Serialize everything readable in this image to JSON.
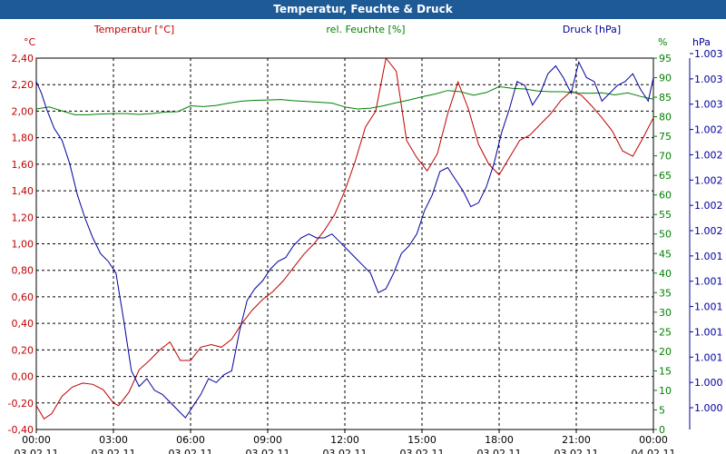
{
  "window": {
    "title": "Temperatur, Feuchte & Druck"
  },
  "chart_data": {
    "type": "line",
    "title": "Temperatur, Feuchte & Druck",
    "x_ticks": [
      "00:00",
      "03:00",
      "06:00",
      "09:00",
      "12:00",
      "15:00",
      "18:00",
      "21:00",
      "00:00"
    ],
    "x_dates": [
      "03.02.11",
      "03.02.11",
      "03.02.11",
      "03.02.11",
      "03.02.11",
      "03.02.11",
      "03.02.11",
      "03.02.11",
      "04.02.11"
    ],
    "x_range_hours": [
      0,
      24
    ],
    "grid": true,
    "colors": {
      "temperature": "#c00000",
      "humidity": "#008000",
      "pressure": "#00009c",
      "grid": "#000000"
    },
    "axes": {
      "temperature": {
        "name": "Temperatur [°C]",
        "unit": "°C",
        "side": "left",
        "ylim": [
          -0.4,
          2.4
        ],
        "tick_labels": [
          "2,40",
          "2,20",
          "2,00",
          "1,80",
          "1,60",
          "1,40",
          "1,20",
          "1,00",
          "0,80",
          "0,60",
          "0,40",
          "0,20",
          "0,00",
          "-0,20",
          "-0,40"
        ]
      },
      "humidity": {
        "name": "rel. Feuchte [%]",
        "unit": "%",
        "side": "right",
        "ylim": [
          0,
          95
        ],
        "tick_labels": [
          "95",
          "90",
          "85",
          "80",
          "75",
          "70",
          "65",
          "60",
          "55",
          "50",
          "45",
          "40",
          "35",
          "30",
          "25",
          "20",
          "15",
          "10",
          "5",
          "0"
        ]
      },
      "pressure": {
        "name": "Druck [hPa]",
        "unit": "hPa",
        "side": "right-outer",
        "tick_labels": [
          "1.003",
          "1.003",
          "1.003",
          "1.002",
          "1.002",
          "1.002",
          "1.002",
          "1.002",
          "1.001",
          "1.001",
          "1.001",
          "1.001",
          "1.001",
          "1.000",
          "1.000"
        ]
      }
    },
    "series": [
      {
        "name": "Temperatur",
        "axis": "temperature",
        "color": "#c00000",
        "x": [
          0,
          0.3,
          0.6,
          1,
          1.4,
          1.8,
          2.2,
          2.6,
          3,
          3.2,
          3.6,
          4,
          4.4,
          4.8,
          5.2,
          5.6,
          6,
          6.4,
          6.8,
          7.2,
          7.6,
          8,
          8.4,
          8.8,
          9.2,
          9.6,
          10,
          10.4,
          10.8,
          11.2,
          11.6,
          12,
          12.4,
          12.8,
          13.2,
          13.6,
          14,
          14.4,
          14.8,
          15.2,
          15.6,
          16,
          16.4,
          16.8,
          17.2,
          17.6,
          18,
          18.4,
          18.8,
          19.2,
          19.6,
          20,
          20.4,
          20.8,
          21.2,
          21.6,
          22,
          22.4,
          22.8,
          23.2,
          23.6,
          24
        ],
        "values": [
          -0.22,
          -0.32,
          -0.28,
          -0.15,
          -0.08,
          -0.05,
          -0.06,
          -0.1,
          -0.2,
          -0.22,
          -0.12,
          0.05,
          0.12,
          0.2,
          0.26,
          0.12,
          0.12,
          0.22,
          0.24,
          0.22,
          0.28,
          0.4,
          0.5,
          0.58,
          0.64,
          0.72,
          0.82,
          0.92,
          1.0,
          1.1,
          1.22,
          1.4,
          1.62,
          1.88,
          2.0,
          2.4,
          2.3,
          1.78,
          1.65,
          1.55,
          1.68,
          1.98,
          2.22,
          2.02,
          1.75,
          1.6,
          1.52,
          1.65,
          1.78,
          1.82,
          1.9,
          1.98,
          2.08,
          2.15,
          2.12,
          2.04,
          1.95,
          1.85,
          1.7,
          1.66,
          1.8,
          1.95
        ]
      },
      {
        "name": "rel. Feuchte",
        "axis": "humidity",
        "color": "#008000",
        "x": [
          0,
          0.5,
          1,
          1.5,
          2,
          2.5,
          3,
          3.5,
          4,
          4.5,
          5,
          5.5,
          6,
          6.5,
          7,
          7.5,
          8,
          8.5,
          9,
          9.5,
          10,
          10.5,
          11,
          11.5,
          12,
          12.5,
          13,
          13.5,
          14,
          14.5,
          15,
          15.5,
          16,
          16.5,
          17,
          17.5,
          18,
          18.5,
          19,
          19.5,
          20,
          20.5,
          21,
          21.5,
          22,
          22.5,
          23,
          23.5,
          24
        ],
        "values": [
          82,
          82.5,
          81.5,
          80.5,
          80.5,
          80.7,
          80.8,
          80.8,
          80.6,
          80.8,
          81.2,
          81.3,
          82.8,
          82.6,
          82.9,
          83.5,
          84,
          84.2,
          84.3,
          84.4,
          84.1,
          83.9,
          83.7,
          83.5,
          82.5,
          82,
          82.2,
          82.8,
          83.6,
          84.3,
          85.1,
          85.8,
          86.7,
          86.4,
          85.5,
          86.2,
          87.7,
          87.3,
          87.1,
          86.6,
          86.4,
          86.4,
          86.1,
          86,
          86.1,
          85.6,
          86.1,
          85.2,
          84.5
        ]
      },
      {
        "name": "Druck",
        "axis": "pressure",
        "color": "#00009c",
        "x": [
          0,
          0.2,
          0.4,
          0.7,
          1,
          1.3,
          1.6,
          1.9,
          2.2,
          2.5,
          2.8,
          3.1,
          3.4,
          3.7,
          4,
          4.3,
          4.6,
          4.9,
          5.2,
          5.5,
          5.8,
          6.1,
          6.4,
          6.7,
          7,
          7.3,
          7.6,
          7.9,
          8.2,
          8.5,
          8.8,
          9.1,
          9.4,
          9.7,
          10,
          10.3,
          10.6,
          10.9,
          11.2,
          11.5,
          11.8,
          12.1,
          12.4,
          12.7,
          13,
          13.3,
          13.6,
          13.9,
          14.2,
          14.5,
          14.8,
          15.1,
          15.4,
          15.7,
          16,
          16.3,
          16.6,
          16.9,
          17.2,
          17.5,
          17.8,
          18.1,
          18.4,
          18.7,
          19,
          19.3,
          19.6,
          19.9,
          20.2,
          20.5,
          20.8,
          21.1,
          21.4,
          21.7,
          22,
          22.3,
          22.6,
          22.9,
          23.2,
          23.5,
          23.8,
          24
        ],
        "values": [
          89,
          86,
          82,
          77,
          74,
          68,
          60,
          54,
          49,
          45,
          43,
          40,
          28,
          15,
          11,
          13,
          10,
          9,
          7,
          5,
          3,
          6,
          9,
          13,
          12,
          14,
          15,
          25,
          33,
          36,
          38,
          41,
          43,
          44,
          47,
          49,
          50,
          49,
          49,
          50,
          48,
          46,
          44,
          42,
          40,
          35,
          36,
          40,
          45,
          47,
          50,
          56,
          60,
          66,
          67,
          64,
          61,
          57,
          58,
          62,
          68,
          76,
          82,
          89,
          88,
          83,
          86,
          91,
          93,
          90,
          86,
          94,
          90,
          89,
          84,
          86,
          88,
          89,
          91,
          87,
          84,
          90
        ]
      }
    ],
    "pressure_axis_ylim_index": [
      0,
      95
    ]
  }
}
